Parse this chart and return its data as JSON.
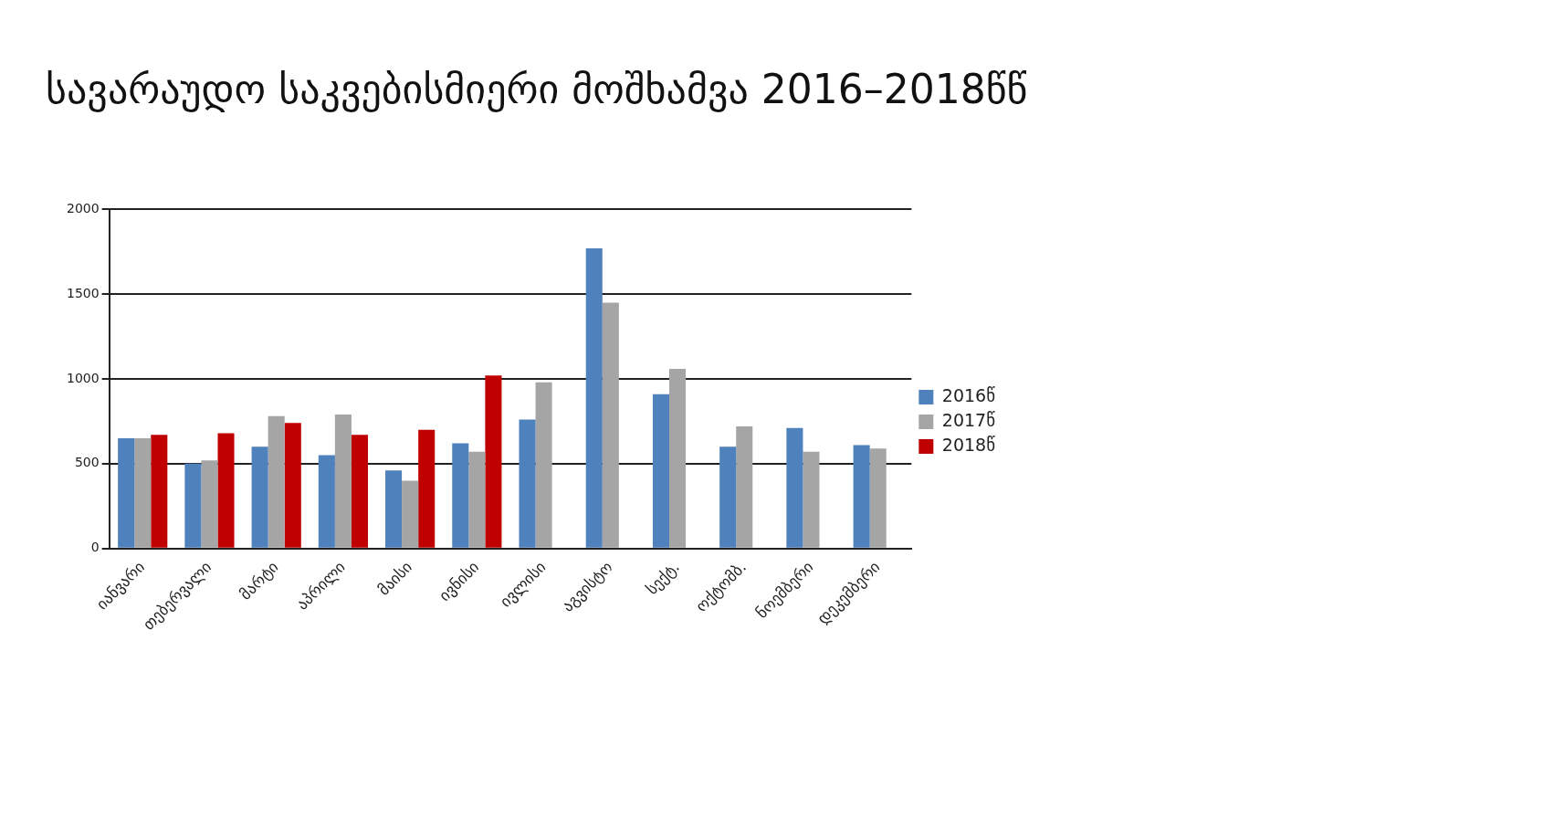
{
  "chart_data": {
    "type": "bar",
    "title": "სავარაუდო საკვებისმიერი მოშხამვა 2016–2018წწ",
    "categories": [
      "იანვარი",
      "თებერვალი",
      "მარტი",
      "აპრილი",
      "მაისი",
      "ივნისი",
      "ივლისი",
      "აგვისტო",
      "სექტ.",
      "ოქტომბ.",
      "ნოემბერი",
      "დეკემბერი"
    ],
    "series": [
      {
        "name": "2016წ",
        "color": "#4f81bd",
        "values": [
          650,
          500,
          600,
          550,
          460,
          620,
          760,
          1770,
          910,
          600,
          710,
          610
        ]
      },
      {
        "name": "2017წ",
        "color": "#a5a5a5",
        "values": [
          650,
          520,
          780,
          790,
          400,
          570,
          980,
          1450,
          1060,
          720,
          570,
          590
        ]
      },
      {
        "name": "2018წ",
        "color": "#c00000",
        "values": [
          670,
          680,
          740,
          670,
          700,
          1020,
          null,
          null,
          null,
          null,
          null,
          null
        ]
      }
    ],
    "ylim": [
      0,
      2000
    ],
    "yticks": [
      0,
      500,
      1000,
      1500,
      2000
    ],
    "grid": "y",
    "legend": "right"
  }
}
